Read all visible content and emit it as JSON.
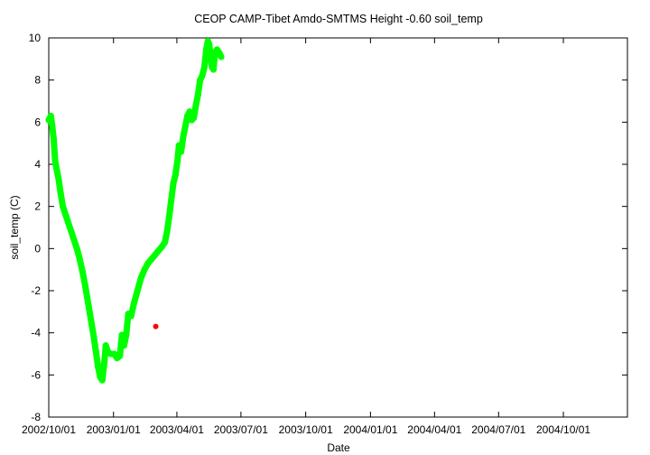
{
  "chart_data": {
    "type": "scatter",
    "title": "CEOP CAMP-Tibet Amdo-SMTMS Height -0.60 soil_temp",
    "xlabel": "Date",
    "ylabel": "soil_temp (C)",
    "ylim": [
      -8,
      10
    ],
    "yticks": [
      10,
      8,
      6,
      4,
      2,
      0,
      -2,
      -4,
      -6,
      -8
    ],
    "xlim": [
      "2002-10-01",
      "2004-12-31"
    ],
    "xticks": [
      {
        "date": "2002-10-01",
        "label": "2002/10/01"
      },
      {
        "date": "2003-01-01",
        "label": "2003/01/01"
      },
      {
        "date": "2003-04-01",
        "label": "2003/04/01"
      },
      {
        "date": "2003-07-01",
        "label": "2003/07/01"
      },
      {
        "date": "2003-10-01",
        "label": "2003/10/01"
      },
      {
        "date": "2004-01-01",
        "label": "2004/01/01"
      },
      {
        "date": "2004-04-01",
        "label": "2004/04/01"
      },
      {
        "date": "2004-07-01",
        "label": "2004/07/01"
      },
      {
        "date": "2004-10-01",
        "label": "2004/10/01"
      }
    ],
    "grid": false,
    "legend": false,
    "series": [
      {
        "color": "#00ff00",
        "points": [
          [
            "2002-10-01",
            6.1
          ],
          [
            "2002-10-04",
            6.3
          ],
          [
            "2002-10-06",
            5.8
          ],
          [
            "2002-10-08",
            5.2
          ],
          [
            "2002-10-10",
            4.2
          ],
          [
            "2002-10-12",
            3.8
          ],
          [
            "2002-10-15",
            3.3
          ],
          [
            "2002-10-18",
            2.6
          ],
          [
            "2002-10-21",
            2.0
          ],
          [
            "2002-10-25",
            1.6
          ],
          [
            "2002-10-29",
            1.2
          ],
          [
            "2002-11-02",
            0.8
          ],
          [
            "2002-11-06",
            0.4
          ],
          [
            "2002-11-10",
            0.0
          ],
          [
            "2002-11-14",
            -0.5
          ],
          [
            "2002-11-18",
            -1.1
          ],
          [
            "2002-11-22",
            -1.8
          ],
          [
            "2002-11-25",
            -2.4
          ],
          [
            "2002-11-28",
            -3.0
          ],
          [
            "2002-12-01",
            -3.6
          ],
          [
            "2002-12-04",
            -4.2
          ],
          [
            "2002-12-07",
            -4.9
          ],
          [
            "2002-12-10",
            -5.6
          ],
          [
            "2002-12-13",
            -6.1
          ],
          [
            "2002-12-16",
            -6.25
          ],
          [
            "2002-12-19",
            -5.4
          ],
          [
            "2002-12-21",
            -4.6
          ],
          [
            "2002-12-24",
            -4.9
          ],
          [
            "2002-12-28",
            -5.0
          ],
          [
            "2003-01-02",
            -5.0
          ],
          [
            "2003-01-06",
            -5.2
          ],
          [
            "2003-01-10",
            -5.1
          ],
          [
            "2003-01-13",
            -4.1
          ],
          [
            "2003-01-16",
            -4.6
          ],
          [
            "2003-01-19",
            -4.1
          ],
          [
            "2003-01-22",
            -3.1
          ],
          [
            "2003-01-26",
            -3.2
          ],
          [
            "2003-01-30",
            -2.6
          ],
          [
            "2003-02-04",
            -2.0
          ],
          [
            "2003-02-09",
            -1.4
          ],
          [
            "2003-02-14",
            -1.0
          ],
          [
            "2003-02-19",
            -0.7
          ],
          [
            "2003-02-24",
            -0.5
          ],
          [
            "2003-03-01",
            -0.3
          ],
          [
            "2003-03-06",
            -0.1
          ],
          [
            "2003-03-11",
            0.1
          ],
          [
            "2003-03-15",
            0.3
          ],
          [
            "2003-03-18",
            0.8
          ],
          [
            "2003-03-21",
            1.5
          ],
          [
            "2003-03-24",
            2.3
          ],
          [
            "2003-03-27",
            3.1
          ],
          [
            "2003-03-30",
            3.5
          ],
          [
            "2003-04-02",
            4.2
          ],
          [
            "2003-04-04",
            4.9
          ],
          [
            "2003-04-07",
            4.6
          ],
          [
            "2003-04-10",
            5.3
          ],
          [
            "2003-04-13",
            5.8
          ],
          [
            "2003-04-16",
            6.3
          ],
          [
            "2003-04-19",
            6.5
          ],
          [
            "2003-04-22",
            6.1
          ],
          [
            "2003-04-25",
            6.2
          ],
          [
            "2003-04-28",
            6.8
          ],
          [
            "2003-05-01",
            7.3
          ],
          [
            "2003-05-04",
            8.0
          ],
          [
            "2003-05-07",
            8.2
          ],
          [
            "2003-05-10",
            8.6
          ],
          [
            "2003-05-13",
            9.5
          ],
          [
            "2003-05-15",
            9.85
          ],
          [
            "2003-05-17",
            9.7
          ],
          [
            "2003-05-19",
            9.0
          ],
          [
            "2003-05-21",
            8.6
          ],
          [
            "2003-05-23",
            8.5
          ],
          [
            "2003-05-25",
            9.3
          ],
          [
            "2003-05-28",
            9.45
          ],
          [
            "2003-05-31",
            9.3
          ],
          [
            "2003-06-03",
            9.1
          ]
        ]
      },
      {
        "color": "#ff0000",
        "points": [
          [
            "2003-03-02",
            -3.7
          ]
        ]
      }
    ]
  }
}
